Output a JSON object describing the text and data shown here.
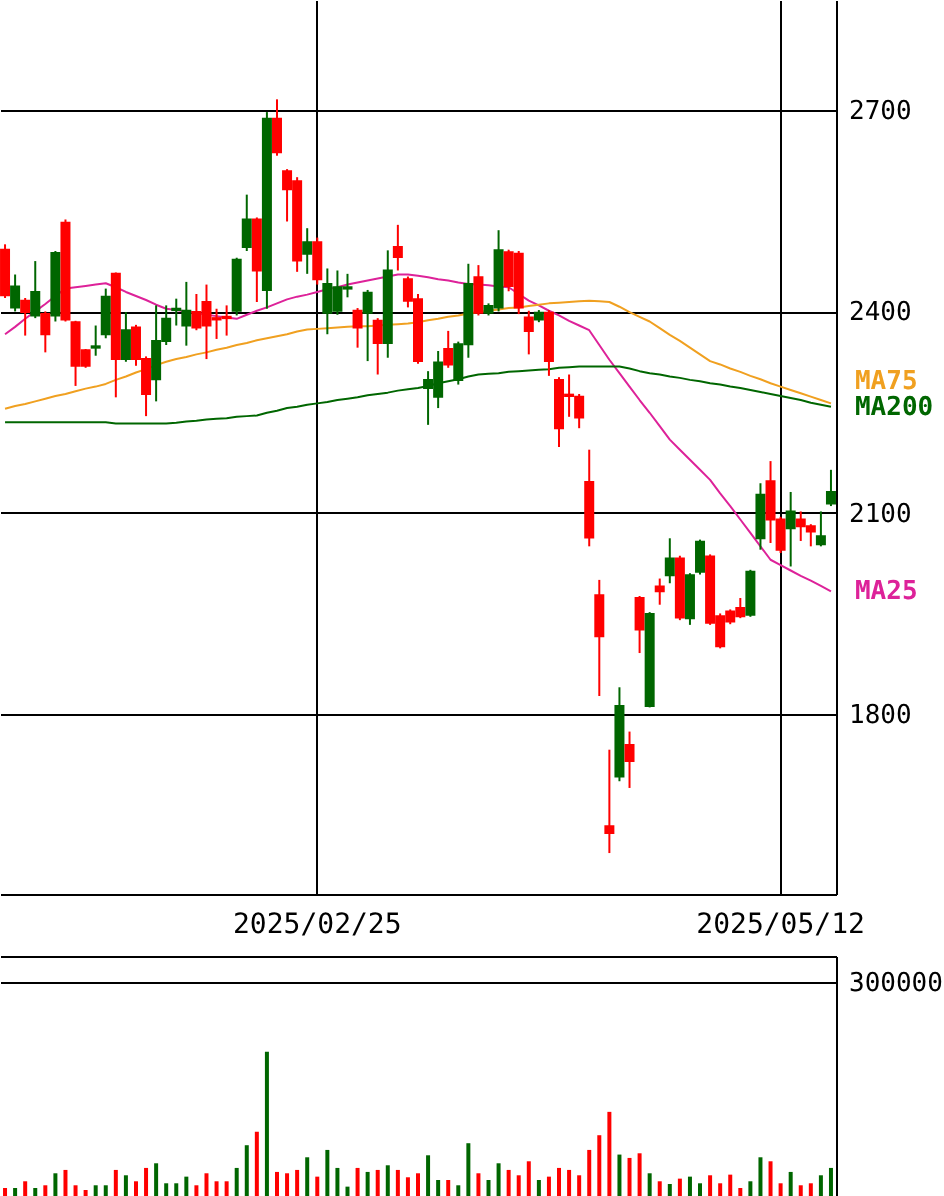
{
  "chart_data": [
    {
      "type": "candlestick",
      "categories": [
        null,
        null,
        null,
        null,
        null,
        null,
        null,
        null,
        null,
        null,
        null,
        null,
        null,
        null,
        null,
        null,
        null,
        null,
        null,
        null,
        null,
        null,
        null,
        null,
        null,
        null,
        null,
        null,
        null,
        null,
        null,
        "2025/02/25",
        null,
        null,
        null,
        null,
        null,
        null,
        null,
        null,
        null,
        null,
        null,
        null,
        null,
        null,
        null,
        null,
        null,
        null,
        null,
        null,
        null,
        null,
        null,
        null,
        null,
        null,
        null,
        null,
        null,
        null,
        null,
        null,
        null,
        null,
        null,
        null,
        null,
        null,
        null,
        null,
        null,
        null,
        null,
        null,
        null,
        "2025/05/12",
        null,
        null,
        null,
        null,
        null
      ],
      "ohlc": [
        [
          2492,
          2500,
          2420,
          2424
        ],
        [
          2406,
          2455,
          2400,
          2437
        ],
        [
          2416,
          2420,
          2364,
          2399
        ],
        [
          2394,
          2475,
          2390,
          2429
        ],
        [
          2396,
          2400,
          2339,
          2366
        ],
        [
          2394,
          2490,
          2385,
          2487
        ],
        [
          2532,
          2537,
          2385,
          2388
        ],
        [
          2384,
          2386,
          2289,
          2319
        ],
        [
          2342,
          2344,
          2316,
          2319
        ],
        [
          2346,
          2379,
          2334,
          2348
        ],
        [
          2366,
          2434,
          2360,
          2422
        ],
        [
          2456,
          2458,
          2272,
          2329
        ],
        [
          2329,
          2399,
          2325,
          2372
        ],
        [
          2376,
          2380,
          2319,
          2329
        ],
        [
          2329,
          2333,
          2244,
          2277
        ],
        [
          2299,
          2409,
          2266,
          2356
        ],
        [
          2356,
          2409,
          2350,
          2389
        ],
        [
          2402,
          2419,
          2379,
          2404
        ],
        [
          2379,
          2444,
          2349,
          2401
        ],
        [
          2399,
          2426,
          2372,
          2376
        ],
        [
          2414,
          2440,
          2329,
          2379
        ],
        [
          2390,
          2404,
          2359,
          2388
        ],
        [
          2392,
          2409,
          2364,
          2390
        ],
        [
          2401,
          2480,
          2394,
          2477
        ],
        [
          2496,
          2574,
          2490,
          2537
        ],
        [
          2537,
          2540,
          2414,
          2461
        ],
        [
          2432,
          2697,
          2404,
          2687
        ],
        [
          2687,
          2716,
          2632,
          2637
        ],
        [
          2609,
          2612,
          2534,
          2582
        ],
        [
          2594,
          2600,
          2459,
          2476
        ],
        [
          2486,
          2524,
          2456,
          2503
        ],
        [
          2503,
          2510,
          2440,
          2448
        ],
        [
          2398,
          2464,
          2366,
          2441
        ],
        [
          2401,
          2461,
          2395,
          2436
        ],
        [
          2434,
          2456,
          2421,
          2436
        ],
        [
          2401,
          2405,
          2346,
          2376
        ],
        [
          2398,
          2432,
          2326,
          2428
        ],
        [
          2386,
          2390,
          2306,
          2353
        ],
        [
          2353,
          2491,
          2331,
          2461
        ],
        [
          2496,
          2529,
          2461,
          2481
        ],
        [
          2448,
          2452,
          2406,
          2416
        ],
        [
          2418,
          2426,
          2322,
          2326
        ],
        [
          2286,
          2311,
          2231,
          2298
        ],
        [
          2273,
          2341,
          2256,
          2324
        ],
        [
          2344,
          2371,
          2316,
          2321
        ],
        [
          2298,
          2355,
          2291,
          2351
        ],
        [
          2351,
          2471,
          2331,
          2441
        ],
        [
          2451,
          2469,
          2394,
          2398
        ],
        [
          2398,
          2412,
          2394,
          2408
        ],
        [
          2406,
          2521,
          2400,
          2491
        ],
        [
          2488,
          2492,
          2430,
          2438
        ],
        [
          2486,
          2490,
          2396,
          2406
        ],
        [
          2391,
          2401,
          2336,
          2371
        ],
        [
          2388,
          2402,
          2384,
          2398
        ],
        [
          2398,
          2402,
          2304,
          2326
        ],
        [
          2298,
          2302,
          2198,
          2226
        ],
        [
          2276,
          2306,
          2243,
          2274
        ],
        [
          2273,
          2277,
          2226,
          2242
        ],
        [
          2146,
          2194,
          2050,
          2063
        ],
        [
          1977,
          2000,
          1827,
          1916
        ],
        [
          1633,
          1747,
          1593,
          1623
        ],
        [
          1707,
          1840,
          1700,
          1812
        ],
        [
          1754,
          1774,
          1690,
          1730
        ],
        [
          1973,
          1976,
          1891,
          1926
        ],
        [
          1812,
          1952,
          1810,
          1949
        ],
        [
          1990,
          2002,
          1963,
          1983
        ],
        [
          2007,
          2062,
          1995,
          2032
        ],
        [
          2032,
          2036,
          1940,
          1944
        ],
        [
          1943,
          2010,
          1933,
          2007
        ],
        [
          2012,
          2060,
          2008,
          2057
        ],
        [
          2035,
          2038,
          1933,
          1936
        ],
        [
          1946,
          1950,
          1898,
          1901
        ],
        [
          1953,
          1956,
          1934,
          1938
        ],
        [
          1958,
          1973,
          1943,
          1946
        ],
        [
          1948,
          2015,
          1945,
          2012
        ],
        [
          2062,
          2144,
          2045,
          2127
        ],
        [
          2147,
          2177,
          2055,
          2090
        ],
        [
          2090,
          2094,
          2040,
          2045
        ],
        [
          2077,
          2131,
          2020,
          2102
        ],
        [
          2090,
          2102,
          2058,
          2080
        ],
        [
          2080,
          2083,
          2050,
          2072
        ],
        [
          2053,
          2102,
          2050,
          2065
        ],
        [
          2114,
          2164,
          2110,
          2131
        ]
      ],
      "colors": [
        "#ff0000",
        "#006600",
        "#ff0000",
        "#006600",
        "#ff0000",
        "#006600",
        "#ff0000",
        "#ff0000",
        "#ff0000",
        "#006600",
        "#006600",
        "#ff0000",
        "#006600",
        "#ff0000",
        "#ff0000",
        "#006600",
        "#006600",
        "#006600",
        "#006600",
        "#ff0000",
        "#ff0000",
        "#ff0000",
        "#ff0000",
        "#006600",
        "#006600",
        "#ff0000",
        "#006600",
        "#ff0000",
        "#ff0000",
        "#ff0000",
        "#006600",
        "#ff0000",
        "#006600",
        "#006600",
        "#006600",
        "#ff0000",
        "#006600",
        "#ff0000",
        "#006600",
        "#ff0000",
        "#ff0000",
        "#ff0000",
        "#006600",
        "#006600",
        "#ff0000",
        "#006600",
        "#006600",
        "#ff0000",
        "#006600",
        "#006600",
        "#ff0000",
        "#ff0000",
        "#ff0000",
        "#006600",
        "#ff0000",
        "#ff0000",
        "#ff0000",
        "#ff0000",
        "#ff0000",
        "#ff0000",
        "#ff0000",
        "#006600",
        "#ff0000",
        "#ff0000",
        "#006600",
        "#ff0000",
        "#006600",
        "#ff0000",
        "#006600",
        "#006600",
        "#ff0000",
        "#ff0000",
        "#ff0000",
        "#ff0000",
        "#006600",
        "#006600",
        "#ff0000",
        "#ff0000",
        "#006600",
        "#ff0000",
        "#ff0000",
        "#006600",
        "#006600"
      ],
      "series": [
        {
          "name": "MA25",
          "type": "line",
          "color": "#dd2299",
          "values": [
            2366,
            2377,
            2389,
            2400,
            2411,
            2423,
            2434,
            2436,
            2438,
            2440,
            2442,
            2436,
            2429,
            2423,
            2417,
            2410,
            2404,
            2402,
            2400,
            2398,
            2395,
            2393,
            2391,
            2389,
            2395,
            2401,
            2406,
            2412,
            2418,
            2422,
            2425,
            2429,
            2433,
            2436,
            2440,
            2443,
            2446,
            2449,
            2452,
            2455,
            2455,
            2453,
            2451,
            2448,
            2446,
            2443,
            2441,
            2440,
            2439,
            2437,
            2436,
            2426,
            2416,
            2409,
            2401,
            2394,
            2386,
            2379,
            2372,
            2350,
            2328,
            2308,
            2288,
            2268,
            2249,
            2229,
            2209,
            2194,
            2179,
            2164,
            2149,
            2129,
            2110,
            2090,
            2070,
            2050,
            2030,
            2022,
            2014,
            2006,
            1999,
            1991,
            1983
          ]
        },
        {
          "name": "MA75",
          "type": "line",
          "color": "#f0a020",
          "values": [
            2255,
            2259,
            2262,
            2266,
            2270,
            2274,
            2277,
            2281,
            2285,
            2288,
            2292,
            2298,
            2303,
            2309,
            2314,
            2320,
            2325,
            2329,
            2332,
            2336,
            2339,
            2343,
            2346,
            2350,
            2353,
            2357,
            2360,
            2363,
            2366,
            2370,
            2373,
            2374,
            2375,
            2376,
            2377,
            2378,
            2378,
            2379,
            2380,
            2381,
            2382,
            2384,
            2387,
            2389,
            2392,
            2394,
            2397,
            2399,
            2401,
            2403,
            2405,
            2406,
            2408,
            2410,
            2412,
            2413,
            2414,
            2415,
            2416,
            2415,
            2414,
            2407,
            2399,
            2392,
            2385,
            2375,
            2365,
            2356,
            2346,
            2336,
            2326,
            2321,
            2315,
            2310,
            2304,
            2299,
            2293,
            2288,
            2283,
            2278,
            2273,
            2268,
            2263
          ]
        },
        {
          "name": "MA200",
          "type": "line",
          "color": "#006600",
          "values": [
            2235,
            2235,
            2235,
            2235,
            2235,
            2235,
            2235,
            2235,
            2235,
            2235,
            2235,
            2233,
            2233,
            2233,
            2233,
            2233,
            2233,
            2234,
            2236,
            2237,
            2239,
            2240,
            2241,
            2243,
            2244,
            2245,
            2249,
            2252,
            2256,
            2258,
            2261,
            2263,
            2265,
            2268,
            2270,
            2272,
            2275,
            2277,
            2279,
            2282,
            2284,
            2286,
            2289,
            2293,
            2296,
            2299,
            2303,
            2306,
            2307,
            2308,
            2310,
            2311,
            2312,
            2313,
            2314,
            2316,
            2317,
            2318,
            2318,
            2318,
            2318,
            2318,
            2315,
            2311,
            2308,
            2306,
            2303,
            2301,
            2298,
            2296,
            2293,
            2291,
            2288,
            2286,
            2283,
            2280,
            2277,
            2274,
            2271,
            2268,
            2264,
            2261,
            2258
          ]
        }
      ],
      "ylim": [
        1532,
        2864
      ],
      "yticks": [
        1800,
        2100,
        2400,
        2700
      ],
      "grid": true
    },
    {
      "type": "bar",
      "categories": [
        null,
        null,
        null,
        null,
        null,
        null,
        null,
        null,
        null,
        null,
        null,
        null,
        null,
        null,
        null,
        null,
        null,
        null,
        null,
        null,
        null,
        null,
        null,
        null,
        null,
        null,
        null,
        null,
        null,
        null,
        null,
        null,
        null,
        null,
        null,
        null,
        null,
        null,
        null,
        null,
        null,
        null,
        null,
        null,
        null,
        null,
        null,
        null,
        null,
        null,
        null,
        null,
        null,
        null,
        null,
        null,
        null,
        null,
        null,
        null,
        null,
        null,
        null,
        null,
        null,
        null,
        null,
        null,
        null,
        null,
        null,
        null,
        null,
        null,
        null,
        null,
        null,
        null,
        null,
        null,
        null,
        null,
        null
      ],
      "values": [
        11200,
        11200,
        20600,
        11200,
        15000,
        31800,
        36500,
        15000,
        8400,
        15000,
        15000,
        36500,
        29000,
        20600,
        39300,
        45800,
        17800,
        17800,
        27100,
        15000,
        31800,
        20600,
        20600,
        39300,
        71100,
        89800,
        202000,
        33700,
        31800,
        36500,
        54200,
        27100,
        64500,
        39300,
        13100,
        39300,
        33700,
        36500,
        43000,
        36500,
        26200,
        31800,
        57000,
        22400,
        22400,
        15000,
        73900,
        31800,
        22400,
        45800,
        36500,
        29000,
        48600,
        22400,
        27100,
        39300,
        36500,
        29000,
        64500,
        85100,
        117800,
        58000,
        53300,
        59800,
        31800,
        20600,
        16800,
        24300,
        27100,
        17800,
        29000,
        17800,
        29900,
        11200,
        20600,
        54200,
        48600,
        17800,
        33700,
        15000,
        17800,
        29000,
        39300
      ],
      "colors": [
        "#ff0000",
        "#006600",
        "#ff0000",
        "#006600",
        "#ff0000",
        "#006600",
        "#ff0000",
        "#ff0000",
        "#ff0000",
        "#006600",
        "#006600",
        "#ff0000",
        "#006600",
        "#ff0000",
        "#ff0000",
        "#006600",
        "#006600",
        "#006600",
        "#006600",
        "#ff0000",
        "#ff0000",
        "#ff0000",
        "#ff0000",
        "#006600",
        "#006600",
        "#ff0000",
        "#006600",
        "#ff0000",
        "#ff0000",
        "#ff0000",
        "#006600",
        "#ff0000",
        "#006600",
        "#006600",
        "#006600",
        "#ff0000",
        "#006600",
        "#ff0000",
        "#006600",
        "#ff0000",
        "#ff0000",
        "#ff0000",
        "#006600",
        "#006600",
        "#ff0000",
        "#006600",
        "#006600",
        "#ff0000",
        "#006600",
        "#006600",
        "#ff0000",
        "#ff0000",
        "#ff0000",
        "#006600",
        "#ff0000",
        "#ff0000",
        "#ff0000",
        "#ff0000",
        "#ff0000",
        "#ff0000",
        "#ff0000",
        "#006600",
        "#ff0000",
        "#ff0000",
        "#006600",
        "#ff0000",
        "#006600",
        "#ff0000",
        "#006600",
        "#006600",
        "#ff0000",
        "#ff0000",
        "#ff0000",
        "#ff0000",
        "#006600",
        "#006600",
        "#ff0000",
        "#ff0000",
        "#006600",
        "#ff0000",
        "#ff0000",
        "#006600",
        "#006600"
      ],
      "ylim": [
        0,
        336000
      ],
      "yticks": [
        {
          "value": 0,
          "label": null
        },
        300000
      ],
      "grid": "y",
      "tick_labels": "y"
    }
  ]
}
